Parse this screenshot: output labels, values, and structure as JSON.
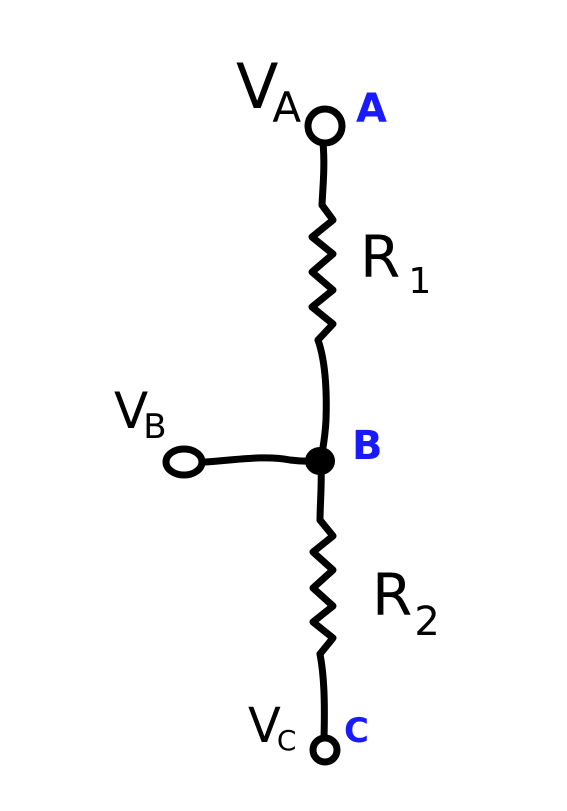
{
  "colors": {
    "ink": "#000000",
    "node_label": "#1a1aff",
    "background": "#ffffff"
  },
  "nodes": {
    "a": {
      "label": "A",
      "voltage_main": "V",
      "voltage_sub": "A"
    },
    "b": {
      "label": "B",
      "voltage_main": "V",
      "voltage_sub": "B"
    },
    "c": {
      "label": "C",
      "voltage_main": "V",
      "voltage_sub": "C"
    }
  },
  "resistors": {
    "r1": {
      "main": "R",
      "sub": "1"
    },
    "r2": {
      "main": "R",
      "sub": "2"
    }
  }
}
